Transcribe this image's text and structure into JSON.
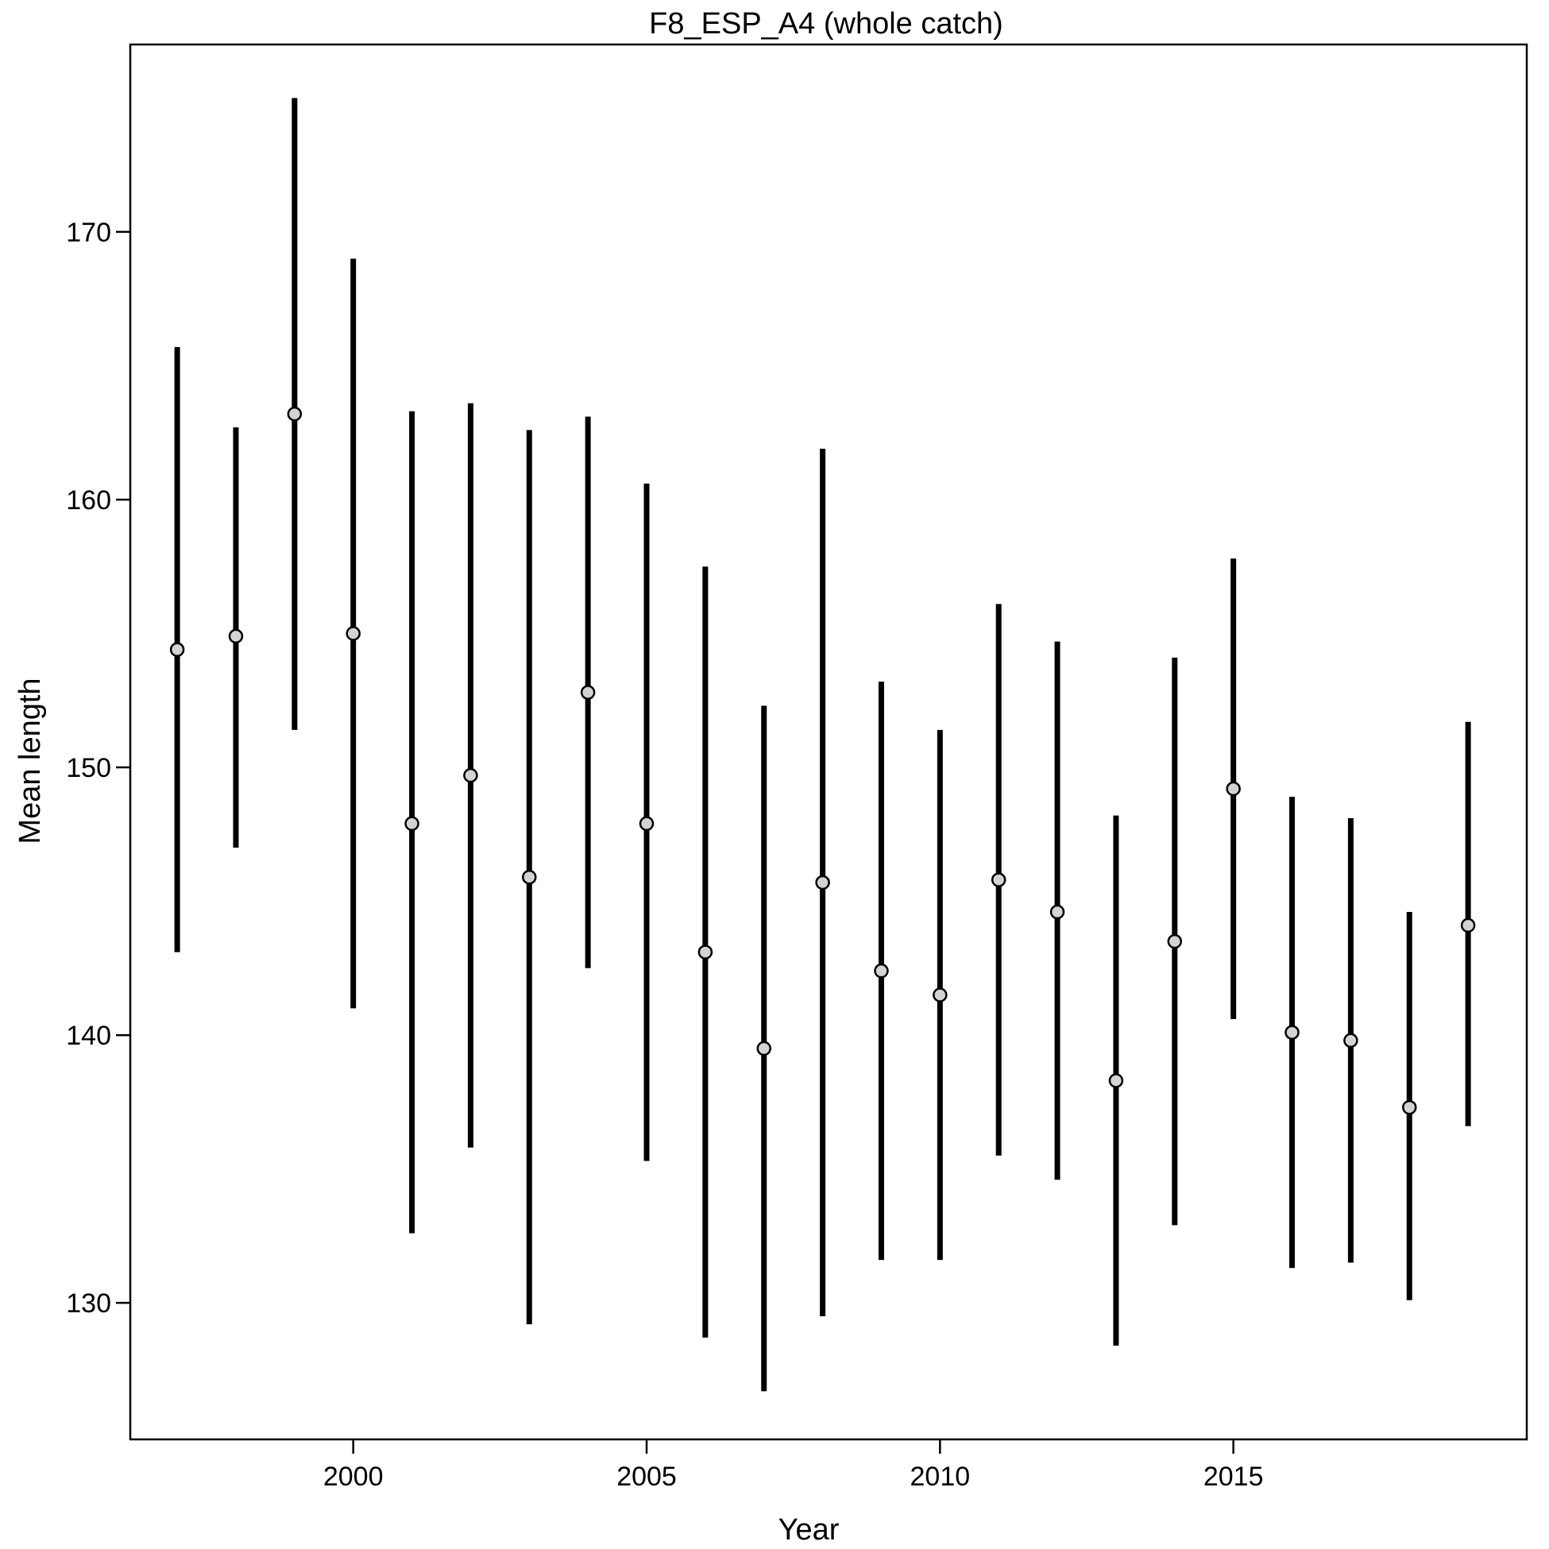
{
  "chart_data": {
    "type": "scatter",
    "title": "F8_ESP_A4 (whole catch)",
    "xlabel": "Year",
    "ylabel": "Mean length",
    "xlim": [
      1996.2,
      2020.0
    ],
    "ylim": [
      124.9,
      177.0
    ],
    "xticks": [
      2000,
      2005,
      2010,
      2015
    ],
    "yticks": [
      130,
      140,
      150,
      160,
      170
    ],
    "grid": false,
    "legend": "none",
    "marker_color": "#d3d3d3",
    "interval_color": "#000000",
    "points": [
      {
        "year": 1997,
        "mean": 154.4,
        "lower": 143.1,
        "upper": 165.7
      },
      {
        "year": 1998,
        "mean": 154.9,
        "lower": 147.0,
        "upper": 162.7
      },
      {
        "year": 1999,
        "mean": 163.2,
        "lower": 151.4,
        "upper": 175.0
      },
      {
        "year": 2000,
        "mean": 155.0,
        "lower": 141.0,
        "upper": 169.0
      },
      {
        "year": 2001,
        "mean": 147.9,
        "lower": 132.6,
        "upper": 163.3
      },
      {
        "year": 2002,
        "mean": 149.7,
        "lower": 135.8,
        "upper": 163.6
      },
      {
        "year": 2003,
        "mean": 145.9,
        "lower": 129.2,
        "upper": 162.6
      },
      {
        "year": 2004,
        "mean": 152.8,
        "lower": 142.5,
        "upper": 163.1
      },
      {
        "year": 2005,
        "mean": 147.9,
        "lower": 135.3,
        "upper": 160.6
      },
      {
        "year": 2006,
        "mean": 143.1,
        "lower": 128.7,
        "upper": 157.5
      },
      {
        "year": 2007,
        "mean": 139.5,
        "lower": 126.7,
        "upper": 152.3
      },
      {
        "year": 2008,
        "mean": 145.7,
        "lower": 129.5,
        "upper": 161.9
      },
      {
        "year": 2009,
        "mean": 142.4,
        "lower": 131.6,
        "upper": 153.2
      },
      {
        "year": 2010,
        "mean": 141.5,
        "lower": 131.6,
        "upper": 151.4
      },
      {
        "year": 2011,
        "mean": 145.8,
        "lower": 135.5,
        "upper": 156.1
      },
      {
        "year": 2012,
        "mean": 144.6,
        "lower": 134.6,
        "upper": 154.7
      },
      {
        "year": 2013,
        "mean": 138.3,
        "lower": 128.4,
        "upper": 148.2
      },
      {
        "year": 2014,
        "mean": 143.5,
        "lower": 132.9,
        "upper": 154.1
      },
      {
        "year": 2015,
        "mean": 149.2,
        "lower": 140.6,
        "upper": 157.8
      },
      {
        "year": 2016,
        "mean": 140.1,
        "lower": 131.3,
        "upper": 148.9
      },
      {
        "year": 2017,
        "mean": 139.8,
        "lower": 131.5,
        "upper": 148.1
      },
      {
        "year": 2018,
        "mean": 137.3,
        "lower": 130.1,
        "upper": 144.6
      },
      {
        "year": 2019,
        "mean": 144.1,
        "lower": 136.6,
        "upper": 151.7
      }
    ]
  }
}
